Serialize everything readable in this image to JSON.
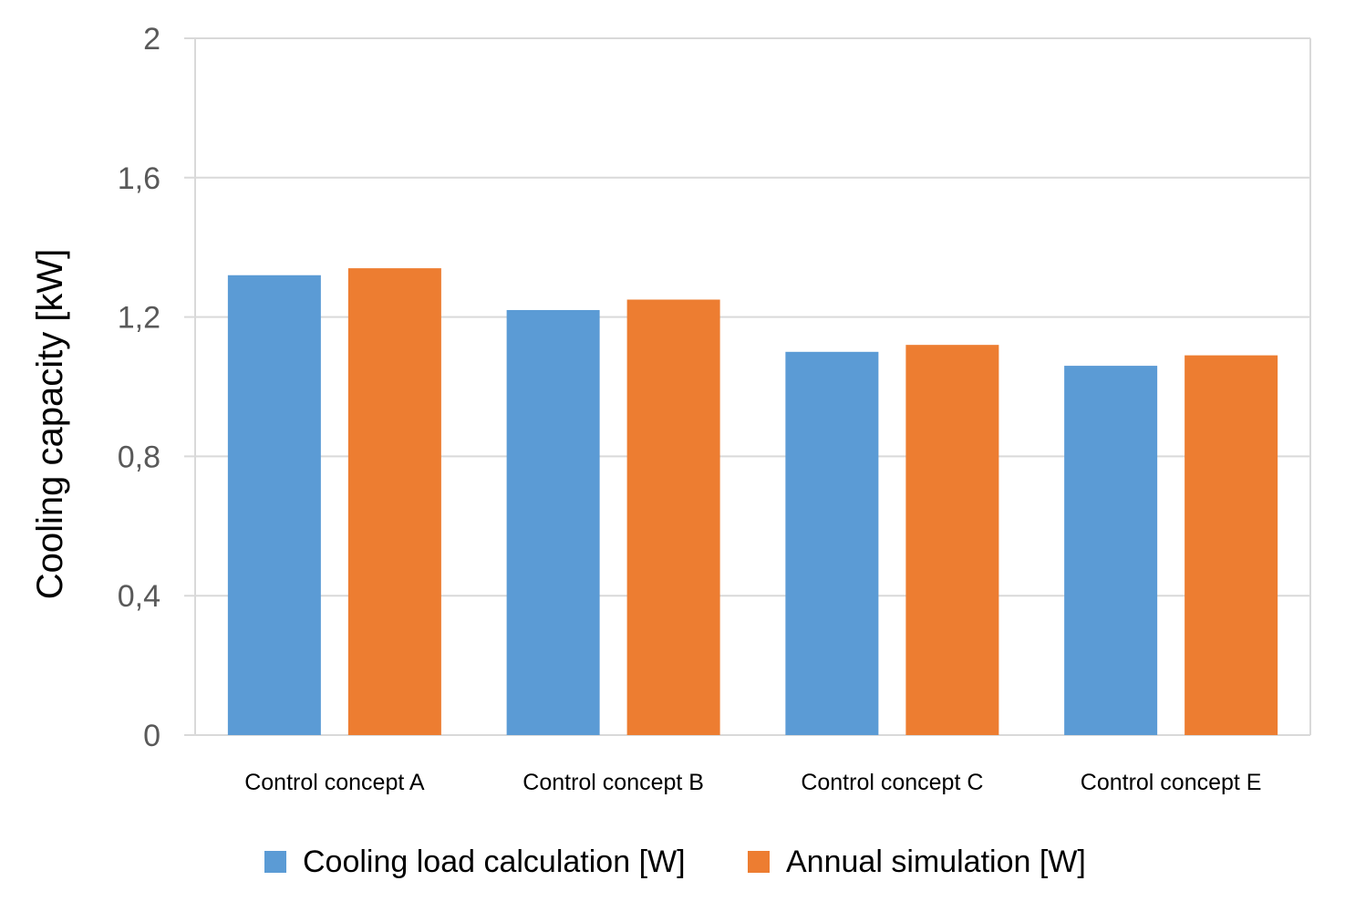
{
  "chart_data": {
    "type": "bar",
    "title": "",
    "xlabel": "",
    "ylabel": "Cooling capacity [kW]",
    "ylim": [
      0,
      2
    ],
    "yticks": [
      0,
      0.4,
      0.8,
      1.2,
      1.6,
      2
    ],
    "ytick_labels": [
      "0",
      "0,4",
      "0,8",
      "1,2",
      "1,6",
      "2"
    ],
    "grid": true,
    "legend_position": "bottom",
    "categories": [
      "Control concept A",
      "Control concept B",
      "Control concept C",
      "Control concept E"
    ],
    "series": [
      {
        "name": "Cooling load calculation [W]",
        "color": "#5B9BD5",
        "values": [
          1.32,
          1.22,
          1.1,
          1.06
        ]
      },
      {
        "name": "Annual simulation [W]",
        "color": "#ED7D31",
        "values": [
          1.34,
          1.25,
          1.12,
          1.09
        ]
      }
    ]
  }
}
